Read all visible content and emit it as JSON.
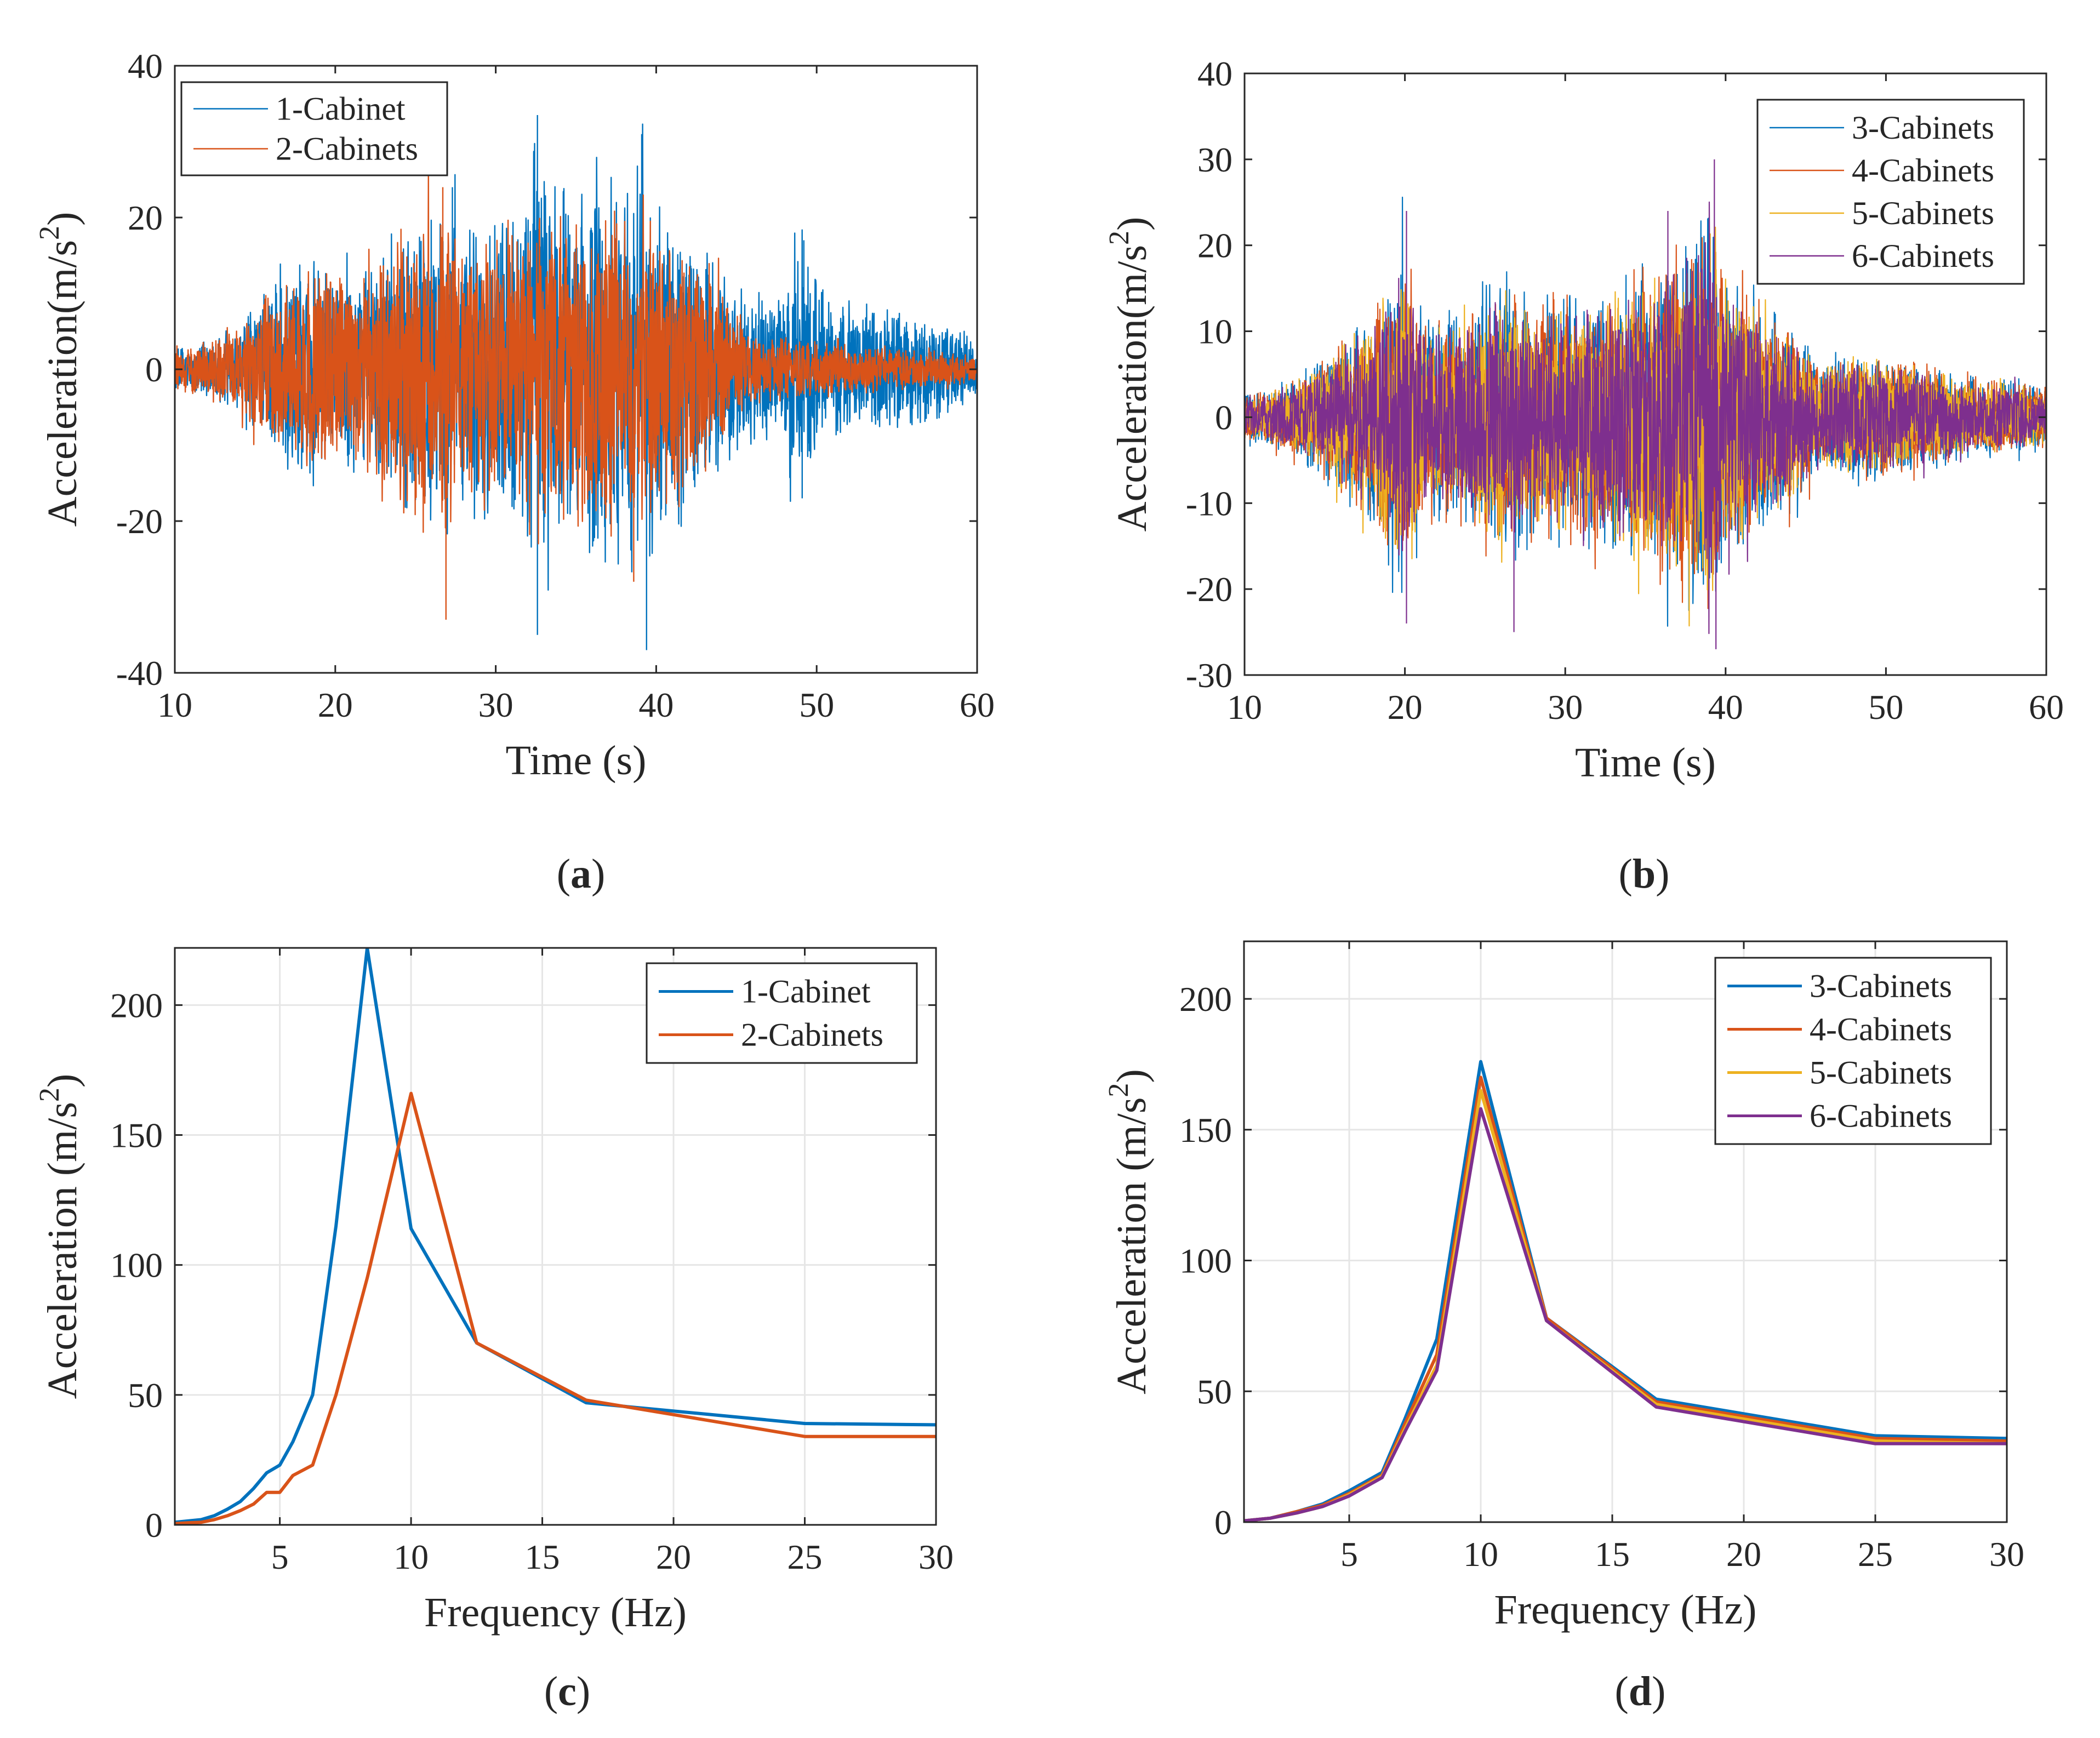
{
  "colors": {
    "blue": "#0072BD",
    "orange": "#D95319",
    "yellow": "#EDB120",
    "purple": "#7E2F8E",
    "axis": "#262626",
    "grid": "#e6e6e6"
  },
  "chart_data": [
    {
      "type": "line",
      "panel": "a",
      "caption": "a",
      "title": "",
      "xlabel": "Time (s)",
      "ylabel": "Acceleration(m/s2)",
      "ylabel_main": "Acceleration(m/s",
      "ylabel_sup": "2",
      "ylabel_end": ")",
      "xlim": [
        10,
        60
      ],
      "ylim": [
        -40,
        40
      ],
      "xticks": [
        10,
        20,
        30,
        40,
        50,
        60
      ],
      "yticks": [
        -40,
        -20,
        0,
        20,
        40
      ],
      "grid": false,
      "legend_position": "top-left",
      "series": [
        {
          "name": "1-Cabinet",
          "color": "#0072BD",
          "envelope": [
            [
              10,
              3
            ],
            [
              12,
              4
            ],
            [
              14,
              7
            ],
            [
              16,
              12
            ],
            [
              18,
              16
            ],
            [
              20,
              15
            ],
            [
              22,
              14
            ],
            [
              24,
              20
            ],
            [
              26,
              22
            ],
            [
              27,
              24
            ],
            [
              28,
              21
            ],
            [
              30,
              24
            ],
            [
              31,
              22
            ],
            [
              32,
              28
            ],
            [
              33,
              34
            ],
            [
              34,
              26
            ],
            [
              36,
              29
            ],
            [
              38,
              30
            ],
            [
              39,
              31
            ],
            [
              40,
              28
            ],
            [
              42,
              20
            ],
            [
              44,
              14
            ],
            [
              46,
              10
            ],
            [
              48,
              12
            ],
            [
              49,
              17
            ],
            [
              50,
              12
            ],
            [
              52,
              9
            ],
            [
              54,
              10
            ],
            [
              56,
              8
            ],
            [
              58,
              7
            ],
            [
              60,
              4
            ]
          ],
          "peaks": [
            [
              27.3,
              24
            ],
            [
              32.6,
              33.5
            ],
            [
              32.6,
              -35
            ],
            [
              39.1,
              31
            ],
            [
              39.4,
              -37
            ],
            [
              49.2,
              17
            ],
            [
              49.1,
              -17
            ]
          ]
        },
        {
          "name": "2-Cabinets",
          "color": "#D95319",
          "envelope": [
            [
              10,
              3
            ],
            [
              12,
              4
            ],
            [
              14,
              7
            ],
            [
              16,
              11
            ],
            [
              18,
              14
            ],
            [
              20,
              14
            ],
            [
              22,
              16
            ],
            [
              24,
              19
            ],
            [
              26,
              23
            ],
            [
              27,
              24
            ],
            [
              28,
              18
            ],
            [
              30,
              22
            ],
            [
              31,
              20
            ],
            [
              32,
              22
            ],
            [
              33,
              23
            ],
            [
              34,
              21
            ],
            [
              36,
              22
            ],
            [
              38,
              24
            ],
            [
              39,
              22
            ],
            [
              40,
              20
            ],
            [
              42,
              18
            ],
            [
              44,
              12
            ],
            [
              46,
              5
            ],
            [
              50,
              4
            ],
            [
              55,
              3
            ],
            [
              60,
              2
            ]
          ],
          "peaks": [
            [
              26.7,
              24
            ],
            [
              26.9,
              -33
            ],
            [
              38.6,
              -28
            ],
            [
              43.3,
              14
            ]
          ]
        }
      ]
    },
    {
      "type": "line",
      "panel": "b",
      "caption": "b",
      "title": "",
      "xlabel": "Time (s)",
      "ylabel": "Acceleration(m/s2)",
      "ylabel_main": "Acceleration(m/s",
      "ylabel_sup": "2",
      "ylabel_end": ")",
      "xlim": [
        10,
        60
      ],
      "ylim": [
        -30,
        40
      ],
      "xticks": [
        10,
        20,
        30,
        40,
        50,
        60
      ],
      "yticks": [
        -30,
        -20,
        -10,
        0,
        10,
        20,
        30,
        40
      ],
      "grid": false,
      "legend_position": "top-right",
      "series": [
        {
          "name": "3-Cabinets",
          "color": "#0072BD"
        },
        {
          "name": "4-Cabinets",
          "color": "#D95319"
        },
        {
          "name": "5-Cabinets",
          "color": "#EDB120"
        },
        {
          "name": "6-Cabinets",
          "color": "#7E2F8E"
        }
      ],
      "envelope": [
        [
          10,
          3
        ],
        [
          12,
          4
        ],
        [
          14,
          6
        ],
        [
          16,
          10
        ],
        [
          18,
          14
        ],
        [
          20,
          22
        ],
        [
          21,
          14
        ],
        [
          22,
          13
        ],
        [
          24,
          14
        ],
        [
          26,
          18
        ],
        [
          27,
          17
        ],
        [
          28,
          15
        ],
        [
          30,
          16
        ],
        [
          32,
          17
        ],
        [
          34,
          18
        ],
        [
          36,
          22
        ],
        [
          38,
          24
        ],
        [
          39,
          28
        ],
        [
          40,
          20
        ],
        [
          42,
          15
        ],
        [
          44,
          12
        ],
        [
          46,
          7
        ],
        [
          48,
          9
        ],
        [
          50,
          8
        ],
        [
          52,
          7
        ],
        [
          54,
          6
        ],
        [
          56,
          5
        ],
        [
          58,
          5
        ],
        [
          60,
          4
        ]
      ],
      "peaks": [
        [
          20.1,
          24
        ],
        [
          20.1,
          -24
        ],
        [
          26.8,
          -25
        ],
        [
          39.3,
          30
        ],
        [
          39.4,
          -27
        ],
        [
          36.4,
          24
        ]
      ]
    },
    {
      "type": "line",
      "panel": "c",
      "caption": "c",
      "title": "",
      "xlabel": "Frequency (Hz)",
      "ylabel": "Acceleration (m/s2)",
      "ylabel_main": "Acceleration (m/s",
      "ylabel_sup": "2",
      "ylabel_end": ")",
      "xlim": [
        1,
        30
      ],
      "ylim": [
        0,
        222
      ],
      "xticks": [
        5,
        10,
        15,
        20,
        25,
        30
      ],
      "yticks": [
        0,
        50,
        100,
        150,
        200
      ],
      "grid": true,
      "legend_position": "top-right",
      "series": [
        {
          "name": "1-Cabinet",
          "color": "#0072BD",
          "x": [
            1,
            1.5,
            2,
            2.5,
            3,
            3.5,
            4,
            4.5,
            5,
            5.5,
            6.25,
            7.14,
            8.33,
            10,
            12.5,
            16.67,
            25,
            30
          ],
          "y": [
            1,
            1.5,
            2,
            3.5,
            6,
            9,
            14,
            20,
            23,
            32,
            50,
            115,
            222,
            114,
            70,
            47,
            39,
            38.5
          ]
        },
        {
          "name": "2-Cabinets",
          "color": "#D95319",
          "x": [
            1,
            1.5,
            2,
            2.5,
            3,
            3.5,
            4,
            4.5,
            5,
            5.5,
            6.25,
            7.14,
            8.33,
            10,
            12.5,
            16.67,
            25,
            30
          ],
          "y": [
            0.5,
            0.8,
            1,
            2,
            3.5,
            5.5,
            8,
            12.5,
            12.5,
            19,
            23,
            50,
            95,
            166,
            70,
            48,
            34,
            34
          ]
        }
      ]
    },
    {
      "type": "line",
      "panel": "d",
      "caption": "d",
      "title": "",
      "xlabel": "Frequency (Hz)",
      "ylabel": "Acceleration (m/s2)",
      "ylabel_main": "Acceleration (m/s",
      "ylabel_sup": "2",
      "ylabel_end": ")",
      "xlim": [
        1,
        30
      ],
      "ylim": [
        0,
        222
      ],
      "xticks": [
        5,
        10,
        15,
        20,
        25,
        30
      ],
      "yticks": [
        0,
        50,
        100,
        150,
        200
      ],
      "grid": true,
      "legend_position": "top-right",
      "series": [
        {
          "name": "3-Cabinets",
          "color": "#0072BD",
          "x": [
            1,
            2,
            3,
            4,
            5,
            6.25,
            7.14,
            8.33,
            10,
            12.5,
            16.67,
            25,
            30
          ],
          "y": [
            0.5,
            1.5,
            4,
            7,
            12,
            19,
            40,
            70,
            176,
            78,
            47,
            33,
            32
          ]
        },
        {
          "name": "4-Cabinets",
          "color": "#D95319",
          "x": [
            1,
            2,
            3,
            4,
            5,
            6.25,
            7.14,
            8.33,
            10,
            12.5,
            16.67,
            25,
            30
          ],
          "y": [
            0.5,
            1.5,
            4,
            6.5,
            11,
            18,
            38,
            64,
            170,
            78,
            46,
            32,
            31
          ]
        },
        {
          "name": "5-Cabinets",
          "color": "#EDB120",
          "x": [
            1,
            2,
            3,
            4,
            5,
            6.25,
            7.14,
            8.33,
            10,
            12.5,
            16.67,
            25,
            30
          ],
          "y": [
            0.5,
            1.5,
            3.5,
            6,
            10.5,
            17.5,
            36,
            60,
            165,
            77,
            45,
            31,
            30
          ]
        },
        {
          "name": "6-Cabinets",
          "color": "#7E2F8E",
          "x": [
            1,
            2,
            3,
            4,
            5,
            6.25,
            7.14,
            8.33,
            10,
            12.5,
            16.67,
            25,
            30
          ],
          "y": [
            0.5,
            1.5,
            3.5,
            6,
            10,
            17,
            35,
            58,
            158,
            77,
            44,
            30,
            30
          ]
        }
      ]
    }
  ]
}
